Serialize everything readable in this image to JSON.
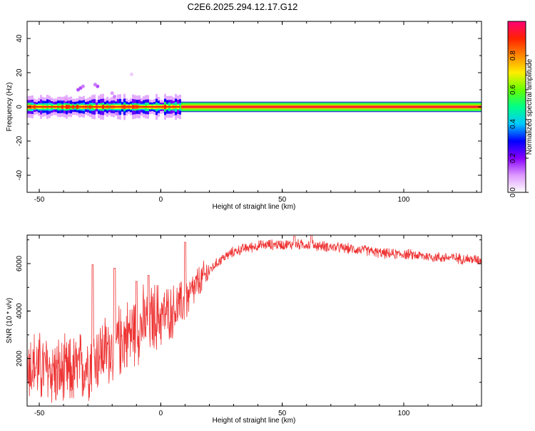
{
  "title": "C2E6.2025.294.12.17.G12",
  "colors": {
    "snr_line": "#ee3333",
    "colormap": [
      "#ffffff",
      "#dd99ff",
      "#8800ff",
      "#0000ff",
      "#00c8ff",
      "#00ff88",
      "#66ff00",
      "#ffee00",
      "#ff8800",
      "#ff2200",
      "#ff0077"
    ]
  },
  "chart_data": [
    {
      "type": "heatmap",
      "xlabel": "Height of straight line (km)",
      "ylabel": "Frequency (Hz)",
      "xlim": [
        -55,
        132
      ],
      "ylim": [
        -50,
        50
      ],
      "xticks": [
        -50,
        0,
        50,
        100
      ],
      "xtick_labels": [
        "-50",
        "0",
        "50",
        "100"
      ],
      "yticks": [
        -40,
        -20,
        0,
        20,
        40
      ],
      "ytick_labels": [
        "-40",
        "-20",
        "0",
        "20",
        "40"
      ],
      "colorbar": {
        "label": "Normalized spectral amplitude",
        "range": [
          0,
          1
        ],
        "ticks": [
          0.0,
          0.2,
          0.4,
          0.6,
          0.8
        ],
        "tick_labels": [
          "0.0",
          "0.2",
          "0.4",
          "0.6",
          "0.8"
        ]
      },
      "features": {
        "carrier_frequency_hz": 0,
        "broad_spread_x_range_km": [
          -55,
          8
        ],
        "broad_spread_half_width_hz": 4,
        "narrow_x_range_km": [
          8,
          132
        ],
        "spur_points": [
          {
            "x": -34,
            "y": 10,
            "amp": 0.15
          },
          {
            "x": -33,
            "y": 11,
            "amp": 0.15
          },
          {
            "x": -32,
            "y": 12,
            "amp": 0.12
          },
          {
            "x": -26,
            "y": 12,
            "amp": 0.15
          },
          {
            "x": -27,
            "y": 13,
            "amp": 0.12
          },
          {
            "x": -19,
            "y": 6,
            "amp": 0.12
          },
          {
            "x": -20,
            "y": 8,
            "amp": 0.1
          },
          {
            "x": -12,
            "y": 19,
            "amp": 0.05
          },
          {
            "x": -39,
            "y": 4,
            "amp": 0.1
          },
          {
            "x": -18,
            "y": -4,
            "amp": 0.12
          }
        ]
      }
    },
    {
      "type": "line",
      "xlabel": "Height of straight line (km)",
      "ylabel": "SNR (10 * v/v)",
      "xlim": [
        -55,
        132
      ],
      "ylim": [
        0,
        7200
      ],
      "xticks": [
        -50,
        0,
        50,
        100
      ],
      "xtick_labels": [
        "-50",
        "0",
        "50",
        "100"
      ],
      "yticks": [
        2000,
        4000,
        6000
      ],
      "ytick_labels": [
        "2000",
        "4000",
        "6000"
      ],
      "series": [
        {
          "x": [
            -55,
            -50,
            -45,
            -40,
            -35,
            -30,
            -25,
            -20,
            -15,
            -10,
            -5,
            0,
            5,
            10,
            15,
            20,
            25,
            30,
            35,
            40,
            45,
            50,
            55,
            60,
            65,
            70,
            75,
            80,
            85,
            90,
            95,
            100,
            105,
            110,
            115,
            120,
            125,
            132
          ],
          "values": [
            1800,
            1600,
            1500,
            1300,
            1500,
            1800,
            2200,
            2500,
            2900,
            3300,
            3600,
            3800,
            4000,
            4400,
            5100,
            5700,
            6200,
            6500,
            6650,
            6750,
            6800,
            6800,
            6800,
            6800,
            6750,
            6700,
            6650,
            6600,
            6550,
            6450,
            6400,
            6400,
            6350,
            6300,
            6250,
            6250,
            6200,
            6150
          ],
          "spikes": [
            {
              "x": -28,
              "y": 5950
            },
            {
              "x": -19,
              "y": 5800
            },
            {
              "x": -10,
              "y": 5250
            },
            {
              "x": -5,
              "y": 5500
            },
            {
              "x": 10,
              "y": 6900
            },
            {
              "x": 55,
              "y": 7150
            },
            {
              "x": 62,
              "y": 7200
            }
          ]
        }
      ]
    }
  ]
}
